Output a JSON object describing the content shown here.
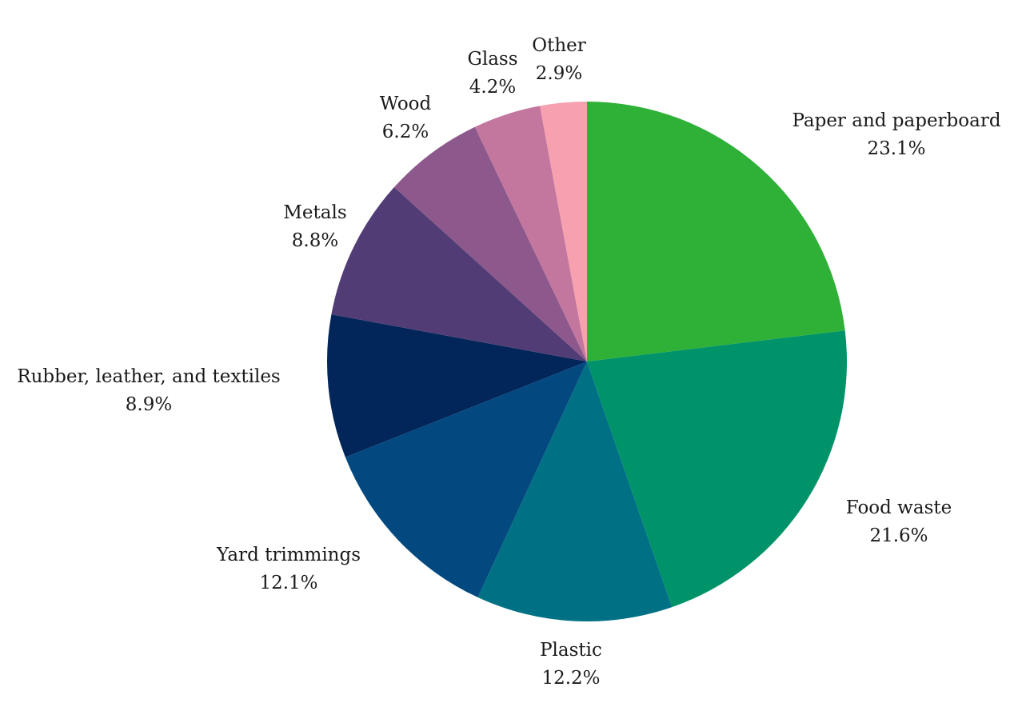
{
  "chart_data": {
    "type": "pie",
    "title": "",
    "slices": [
      {
        "label": "Paper and paperboard",
        "value": 23.1,
        "value_label": "23.1%",
        "color": "#2fb137"
      },
      {
        "label": "Food waste",
        "value": 21.6,
        "value_label": "21.6%",
        "color": "#00936a"
      },
      {
        "label": "Plastic",
        "value": 12.2,
        "value_label": "12.2%",
        "color": "#007185"
      },
      {
        "label": "Yard trimmings",
        "value": 12.1,
        "value_label": "12.1%",
        "color": "#034980"
      },
      {
        "label": "Rubber, leather, and textiles",
        "value": 8.9,
        "value_label": "8.9%",
        "color": "#02265a"
      },
      {
        "label": "Metals",
        "value": 8.8,
        "value_label": "8.8%",
        "color": "#513c76"
      },
      {
        "label": "Wood",
        "value": 6.2,
        "value_label": "6.2%",
        "color": "#8d588c"
      },
      {
        "label": "Glass",
        "value": 4.2,
        "value_label": "4.2%",
        "color": "#c3779e"
      },
      {
        "label": "Other",
        "value": 2.9,
        "value_label": "2.9%",
        "color": "#f6a0b0"
      }
    ],
    "start_angle": "12 o'clock",
    "direction": "clockwise",
    "legend": "none"
  }
}
